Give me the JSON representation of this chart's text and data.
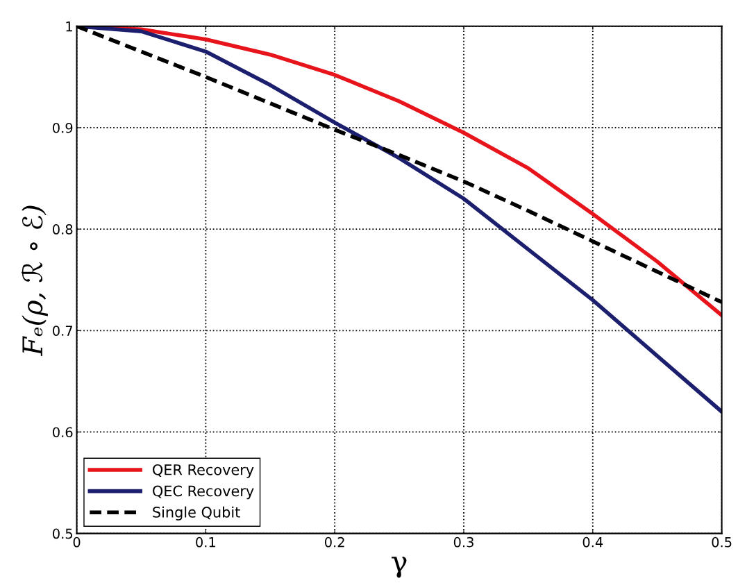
{
  "chart_data": {
    "type": "line",
    "xlabel": "γ",
    "ylabel": "Fₑ(ρ, ℛ ∘ ℰ)",
    "x": [
      0,
      0.05,
      0.1,
      0.15,
      0.2,
      0.25,
      0.3,
      0.35,
      0.4,
      0.45,
      0.5
    ],
    "series": [
      {
        "name": "QER Recovery",
        "color": "#e8141c",
        "line_style": "solid",
        "values": [
          1,
          0.997,
          0.987,
          0.972,
          0.952,
          0.926,
          0.895,
          0.86,
          0.815,
          0.768,
          0.715
        ]
      },
      {
        "name": "QEC Recovery",
        "color": "#1c1f6e",
        "line_style": "solid",
        "values": [
          1,
          0.995,
          0.975,
          0.942,
          0.905,
          0.87,
          0.83,
          0.78,
          0.73,
          0.675,
          0.62
        ]
      },
      {
        "name": "Single Qubit",
        "color": "#000000",
        "line_style": "dashed",
        "values": [
          1,
          0.975,
          0.95,
          0.924,
          0.898,
          0.873,
          0.847,
          0.818,
          0.788,
          0.758,
          0.728
        ]
      }
    ],
    "xlim": [
      0,
      0.5
    ],
    "ylim": [
      0.5,
      1
    ],
    "xticks": [
      0,
      0.1,
      0.2,
      0.3,
      0.4,
      0.5
    ],
    "yticks": [
      0.5,
      0.6,
      0.7,
      0.8,
      0.9,
      1
    ],
    "grid": true,
    "legend": "bottom left",
    "marker": "none"
  }
}
